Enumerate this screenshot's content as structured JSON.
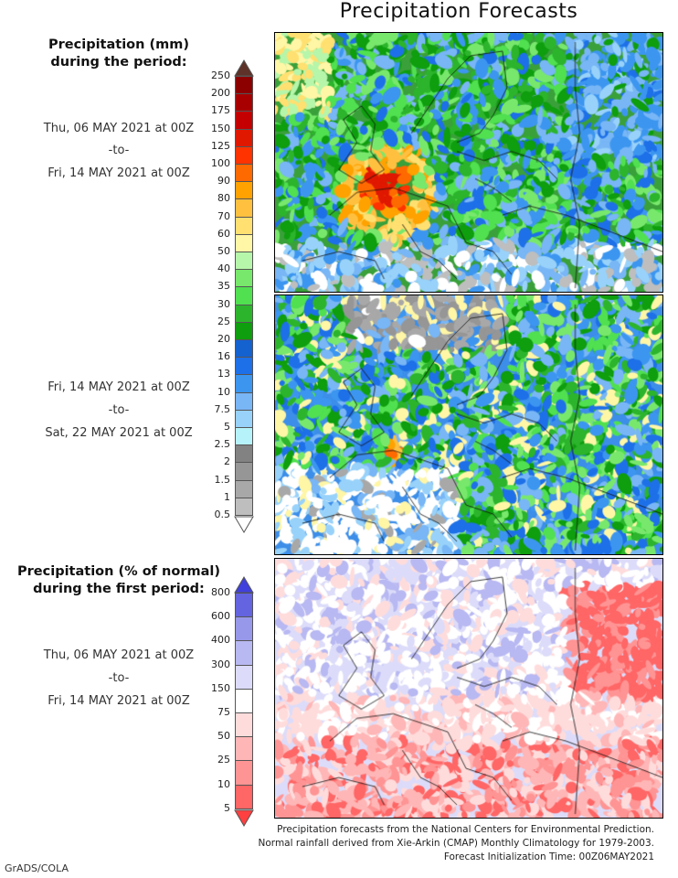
{
  "title": "Precipitation Forecasts",
  "panel1": {
    "heading_line1": "Precipitation (mm)",
    "heading_line2": "during the period:",
    "from": "Thu, 06 MAY 2021 at 00Z",
    "sep": "-to-",
    "to": "Fri, 14 MAY 2021 at 00Z"
  },
  "panel2": {
    "from": "Fri, 14 MAY 2021 at 00Z",
    "sep": "-to-",
    "to": "Sat, 22 MAY 2021 at 00Z"
  },
  "panel3": {
    "heading_line1": "Precipitation (% of normal)",
    "heading_line2": "during the first period:",
    "from": "Thu, 06 MAY 2021 at 00Z",
    "sep": "-to-",
    "to": "Fri, 14 MAY 2021 at 00Z"
  },
  "precip_colorbar": {
    "labels": [
      "250",
      "200",
      "175",
      "150",
      "125",
      "100",
      "90",
      "80",
      "70",
      "60",
      "50",
      "40",
      "35",
      "30",
      "25",
      "20",
      "16",
      "13",
      "10",
      "7.5",
      "5",
      "2.5",
      "2",
      "1.5",
      "1",
      "0.5"
    ],
    "colors": [
      "#8c0000",
      "#a80000",
      "#c40000",
      "#e01800",
      "#ff3300",
      "#ff6a00",
      "#ffa200",
      "#ffc040",
      "#ffe070",
      "#fff6a6",
      "#b6f6aa",
      "#78e86c",
      "#50e050",
      "#2cb42c",
      "#0e9e0e",
      "#1462d0",
      "#1e70e8",
      "#3c96f0",
      "#78b6f6",
      "#98d2fa",
      "#b6f2fa",
      "#828282",
      "#969696",
      "#a8a8a8",
      "#bebebe"
    ],
    "over_color": "#5e3228",
    "under_color": "#ffffff"
  },
  "percent_colorbar": {
    "labels": [
      "800",
      "600",
      "400",
      "300",
      "150",
      "75",
      "50",
      "25",
      "10",
      "5"
    ],
    "colors": [
      "#6464e0",
      "#9898ea",
      "#b8b8f2",
      "#dcdcfa",
      "#ffffff",
      "#ffdcdc",
      "#ffb6b6",
      "#ff9494",
      "#ff6666"
    ],
    "over_color": "#4040dc",
    "under_color": "#ff4040"
  },
  "footer": {
    "line1": "Precipitation forecasts from the National Centers for Environmental Prediction.",
    "line2": "Normal rainfall derived from Xie-Arkin (CMAP) Monthly Climatology for 1979-2003.",
    "line3": "Forecast Initialization Time: 00Z06MAY2021"
  },
  "credit": "GrADS/COLA"
}
